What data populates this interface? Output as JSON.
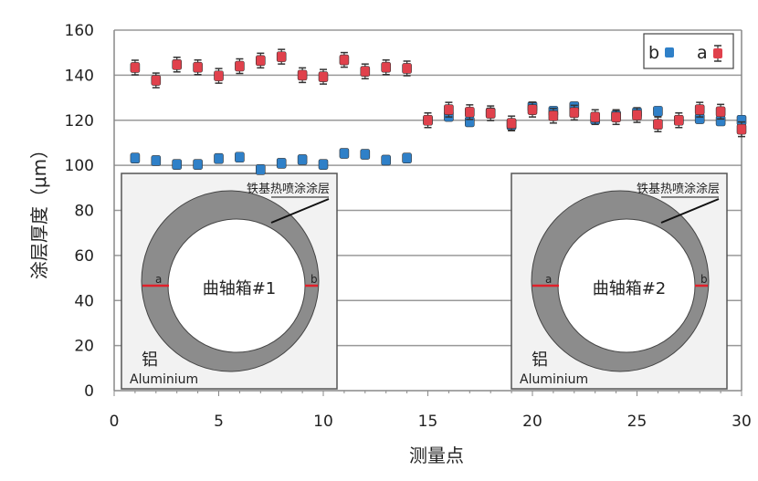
{
  "chart_data": {
    "type": "scatter",
    "xlabel": "测量点",
    "ylabel": "涂层厚度（μm）",
    "xlim": [
      0,
      30
    ],
    "ylim": [
      0,
      160
    ],
    "x_ticks": [
      "0",
      "5",
      "10",
      "15",
      "20",
      "25",
      "30"
    ],
    "y_ticks": [
      "0",
      "20",
      "40",
      "60",
      "80",
      "100",
      "120",
      "140",
      "160"
    ],
    "grid": "horizontal",
    "legend_position": "top-right",
    "x": [
      1,
      2,
      3,
      4,
      5,
      6,
      7,
      8,
      9,
      10,
      11,
      12,
      13,
      14,
      15,
      16,
      17,
      18,
      19,
      20,
      21,
      22,
      23,
      24,
      25,
      26,
      27,
      28,
      29,
      30
    ],
    "series": [
      {
        "name": "b",
        "color": "#2f80c8",
        "error_bars": false,
        "values": [
          103.2,
          102.1,
          100.4,
          100.4,
          103,
          103.6,
          98.1,
          100.9,
          102.5,
          100.4,
          105.3,
          104.9,
          102.3,
          103.2,
          120,
          121.7,
          119.3,
          123.3,
          118,
          126,
          124,
          126,
          120.4,
          122,
          123.4,
          124,
          120,
          120.7,
          119.7,
          120
        ]
      },
      {
        "name": "a",
        "color": "#e0414c",
        "error_bars": true,
        "values": [
          143.4,
          137.7,
          144.7,
          143.5,
          139.7,
          144,
          146.5,
          148.2,
          140,
          139.3,
          146.8,
          141.7,
          143.5,
          143,
          120,
          124.7,
          123.6,
          123.1,
          118.6,
          124.7,
          122,
          123.4,
          121.4,
          121.4,
          122.3,
          118.2,
          120,
          124.7,
          123.8,
          116
        ]
      }
    ]
  },
  "insets": [
    {
      "coating_label": "铁基热喷涂涂层",
      "part_label": "曲轴箱#1",
      "point_a": "a",
      "point_b": "b",
      "material_cn": "铝",
      "material_en": "Aluminium"
    },
    {
      "coating_label": "铁基热喷涂涂层",
      "part_label": "曲轴箱#2",
      "point_a": "a",
      "point_b": "b",
      "material_cn": "铝",
      "material_en": "Aluminium"
    }
  ],
  "colors": {
    "ring": "#8c8c8c",
    "inset_bg": "#f2f2f2",
    "section_line": "#e0202a"
  }
}
